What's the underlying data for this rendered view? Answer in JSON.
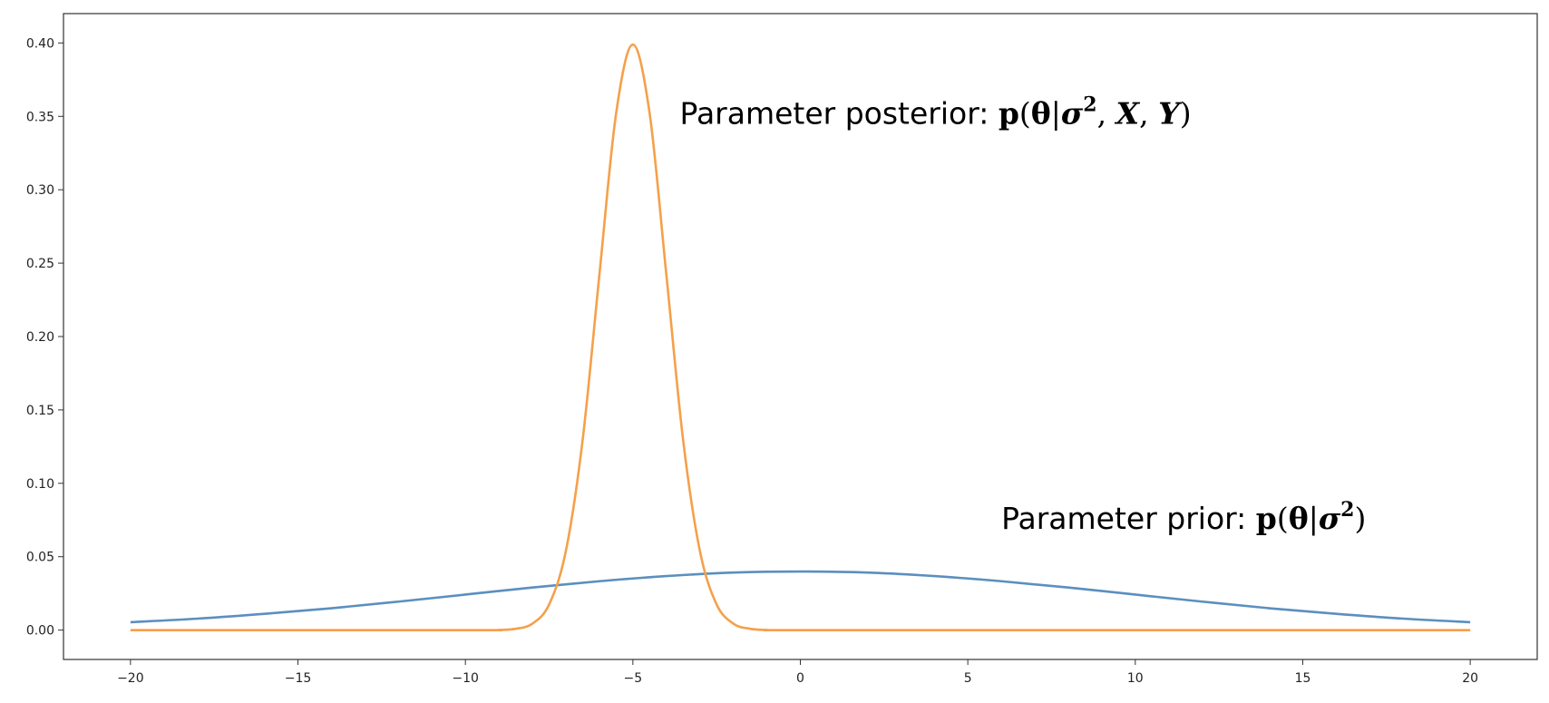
{
  "chart_data": {
    "type": "line",
    "title": "",
    "xlabel": "",
    "ylabel": "",
    "xlim": [
      -22,
      22
    ],
    "ylim": [
      -0.02,
      0.42
    ],
    "grid": false,
    "x_ticks": [
      -20,
      -15,
      -10,
      -5,
      0,
      5,
      10,
      15,
      20
    ],
    "y_ticks": [
      0.0,
      0.05,
      0.1,
      0.15,
      0.2,
      0.25,
      0.3,
      0.35,
      0.4
    ],
    "x_tick_labels": [
      "−20",
      "−15",
      "−10",
      "−5",
      "0",
      "5",
      "10",
      "15",
      "20"
    ],
    "y_tick_labels": [
      "0.00",
      "0.05",
      "0.10",
      "0.15",
      "0.20",
      "0.25",
      "0.30",
      "0.35",
      "0.40"
    ],
    "series": [
      {
        "color": "#5b8fbf",
        "x": [
          -20,
          -18,
          -16,
          -14,
          -12,
          -10,
          -8,
          -6,
          -4,
          -2,
          0,
          2,
          4,
          6,
          8,
          10,
          12,
          14,
          16,
          18,
          20
        ],
        "y": [
          0.0054,
          0.0078,
          0.0111,
          0.0149,
          0.0194,
          0.0242,
          0.029,
          0.0333,
          0.0368,
          0.0392,
          0.0399,
          0.0392,
          0.0368,
          0.0333,
          0.029,
          0.0242,
          0.0194,
          0.0149,
          0.0111,
          0.0078,
          0.0054
        ]
      },
      {
        "color": "#f5a04a",
        "x": [
          -20,
          -10,
          -9,
          -8.5,
          -8,
          -7.5,
          -7,
          -6.5,
          -6,
          -5.5,
          -5,
          -4.5,
          -4,
          -3.5,
          -3,
          -2.5,
          -2,
          -1.5,
          -1,
          0,
          10,
          20
        ],
        "y": [
          0.0,
          0.0,
          0.0001,
          0.0009,
          0.0044,
          0.0175,
          0.054,
          0.1295,
          0.242,
          0.3521,
          0.3989,
          0.3521,
          0.242,
          0.1295,
          0.054,
          0.0175,
          0.0044,
          0.0009,
          0.0001,
          0.0,
          0.0,
          0.0
        ]
      }
    ],
    "annotations": [
      {
        "id": "posterior",
        "x": -3.6,
        "y": 0.345,
        "prefix": "Parameter posterior: ",
        "p": "p",
        "open": "(",
        "theta": "θ",
        "bar": "|",
        "sigma": "σ",
        "sup": "2",
        "rest": ", ",
        "X": "X",
        "comma2": ", ",
        "Y": "Y",
        "close": ")"
      },
      {
        "id": "prior",
        "x": 6.0,
        "y": 0.069,
        "prefix": "Parameter prior: ",
        "p": "p",
        "open": "(",
        "theta": "θ",
        "bar": "|",
        "sigma": "σ",
        "sup": "2",
        "close": ")"
      }
    ]
  }
}
